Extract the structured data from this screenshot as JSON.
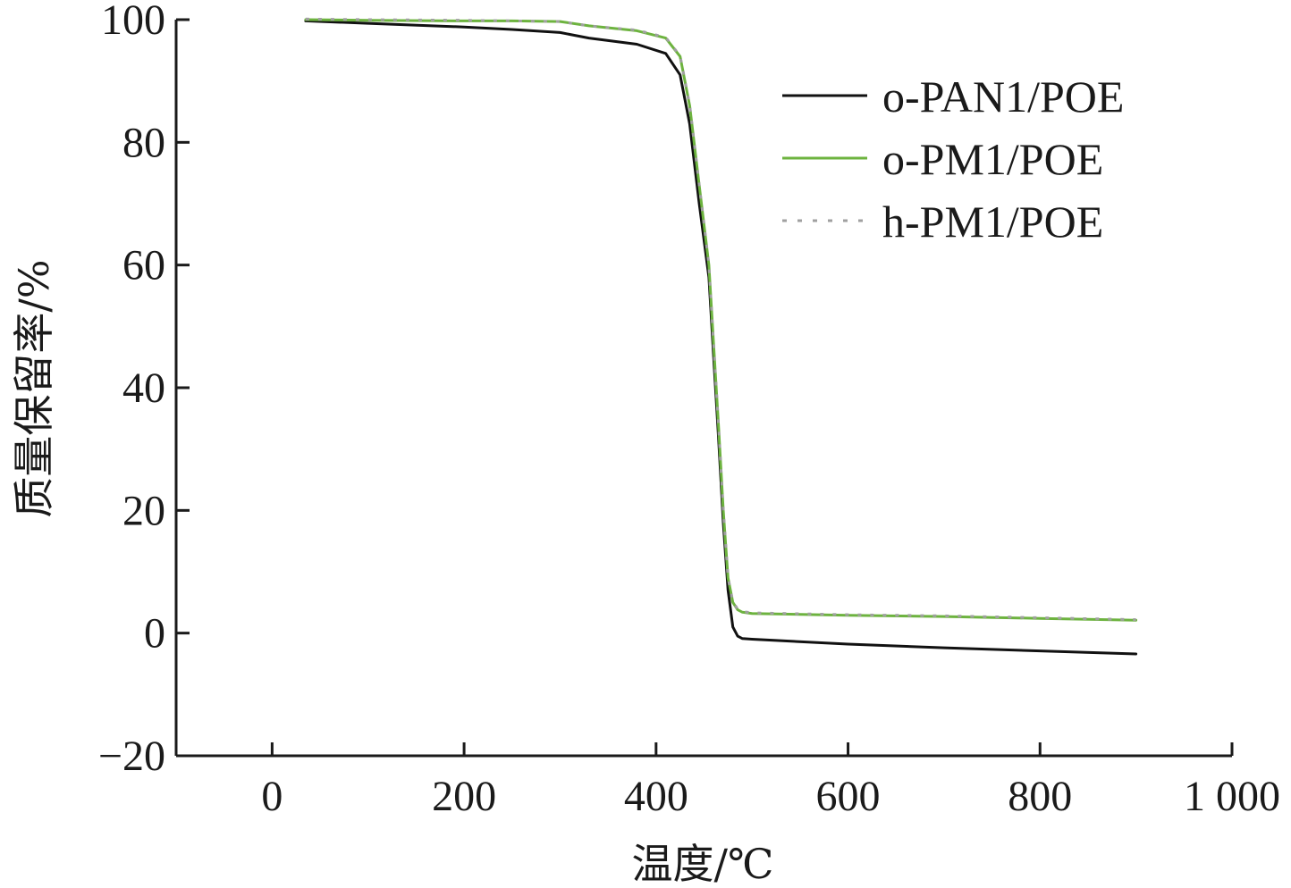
{
  "chart_data": {
    "type": "line",
    "title": "",
    "xlabel": "温度/℃",
    "ylabel": "质量保留率/%",
    "xlim": [
      -100,
      1000
    ],
    "ylim": [
      -20,
      100
    ],
    "x_ticks": [
      0,
      200,
      400,
      600,
      800,
      1000
    ],
    "x_tick_labels": [
      "0",
      "200",
      "400",
      "600",
      "800",
      "1 000"
    ],
    "y_ticks": [
      -20,
      0,
      20,
      40,
      60,
      80,
      100
    ],
    "y_tick_labels": [
      "−20",
      "0",
      "20",
      "40",
      "60",
      "80",
      "100"
    ],
    "grid": false,
    "legend_position": "top-right",
    "series": [
      {
        "name": "o-PAN1/POE",
        "color": "#111111",
        "dash": "solid",
        "x": [
          35,
          100,
          200,
          250,
          300,
          330,
          380,
          410,
          425,
          435,
          445,
          455,
          460,
          465,
          470,
          475,
          480,
          485,
          490,
          500,
          600,
          700,
          800,
          900
        ],
        "y": [
          99.8,
          99.4,
          98.8,
          98.4,
          97.9,
          97.0,
          96.0,
          94.5,
          91.0,
          83.0,
          70.0,
          58.0,
          45.0,
          32.0,
          18.0,
          7.0,
          1.0,
          -0.5,
          -0.9,
          -1.0,
          -1.8,
          -2.4,
          -2.9,
          -3.4
        ]
      },
      {
        "name": "o-PM1/POE",
        "color": "#6db33f",
        "dash": "solid",
        "x": [
          35,
          100,
          200,
          250,
          300,
          330,
          380,
          410,
          425,
          435,
          445,
          455,
          460,
          465,
          470,
          475,
          480,
          485,
          490,
          500,
          600,
          700,
          800,
          900
        ],
        "y": [
          100.0,
          99.9,
          99.8,
          99.8,
          99.7,
          99.0,
          98.2,
          97.0,
          94.0,
          86.0,
          73.0,
          60.0,
          47.0,
          34.0,
          20.0,
          9.0,
          5.0,
          3.8,
          3.4,
          3.2,
          2.9,
          2.7,
          2.4,
          2.1
        ]
      },
      {
        "name": "h-PM1/POE",
        "color": "#a0a0a0",
        "dash": "dotted",
        "x": [
          35,
          100,
          200,
          250,
          300,
          330,
          380,
          410,
          425,
          435,
          445,
          455,
          460,
          465,
          470,
          475,
          480,
          485,
          490,
          500,
          600,
          700,
          800,
          900
        ],
        "y": [
          100.1,
          100.0,
          99.9,
          99.8,
          99.7,
          99.0,
          98.3,
          97.1,
          94.1,
          86.1,
          73.1,
          60.1,
          47.1,
          34.1,
          20.1,
          9.1,
          5.1,
          3.9,
          3.5,
          3.3,
          3.0,
          2.8,
          2.5,
          2.2
        ]
      }
    ]
  }
}
